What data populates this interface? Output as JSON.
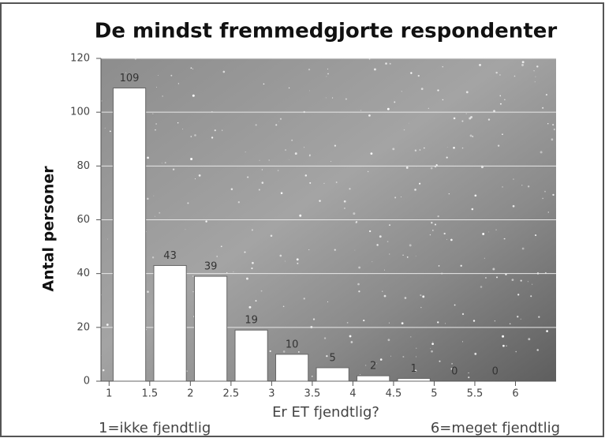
{
  "chart_data": {
    "type": "histogram",
    "title": "De mindst fremmedgjorte respondenter",
    "x_label": "Er ET fjendtlig?",
    "y_label": "Antal personer",
    "annotations": [
      "1=ikke fjendtlig",
      "6=meget fjendtlig"
    ],
    "bins": [
      1,
      1.5,
      2,
      2.5,
      3,
      3.5,
      4,
      4.5,
      5,
      5.5,
      6
    ],
    "values": [
      109,
      43,
      39,
      19,
      10,
      5,
      2,
      1,
      0,
      0
    ],
    "color": "#ffffff",
    "xlim": [
      0.9,
      6.5
    ],
    "xticks": [
      1,
      1.5,
      2,
      2.5,
      3,
      3.5,
      4,
      4.5,
      5,
      5.5,
      6
    ],
    "ylim": [
      0,
      120
    ],
    "yticks": [
      0,
      20,
      40,
      60,
      80,
      100,
      120
    ],
    "grid": true
  }
}
